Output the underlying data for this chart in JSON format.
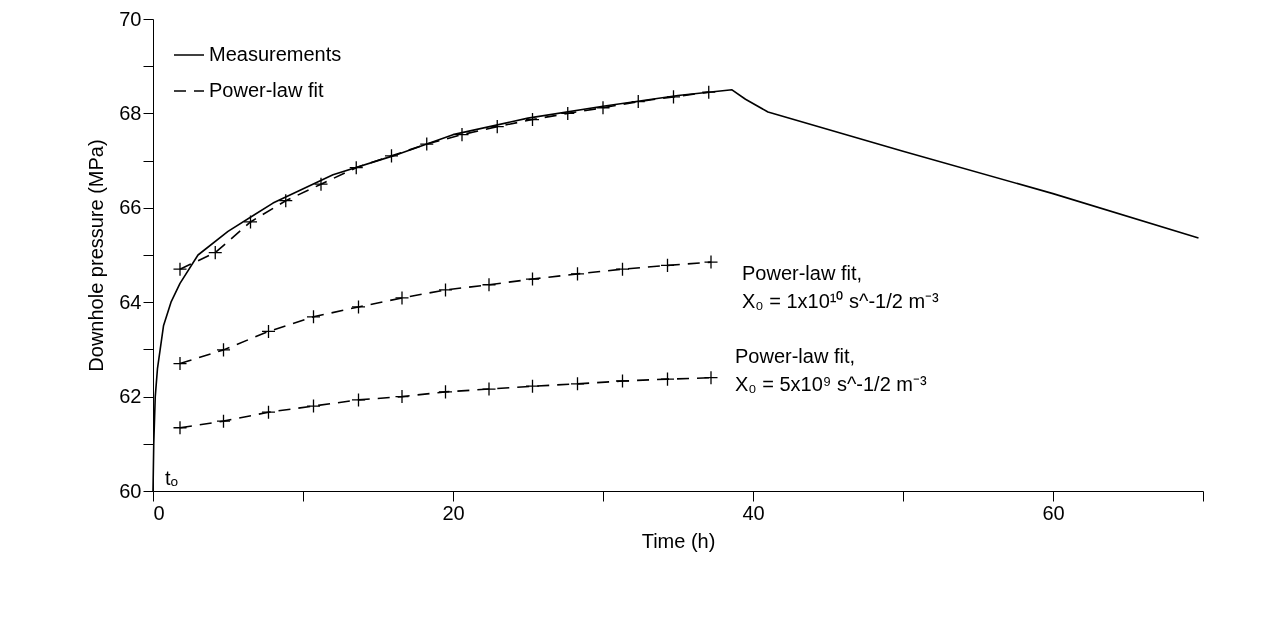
{
  "chart_data": {
    "type": "line",
    "xlabel": "Time (h)",
    "ylabel": "Downhole pressure (MPa)",
    "xlim": [
      0,
      70
    ],
    "ylim": [
      60,
      70
    ],
    "xticks": [
      0,
      {
        "value": 10,
        "label": null
      },
      20,
      {
        "value": 30,
        "label": null
      },
      40,
      {
        "value": 50,
        "label": null
      },
      60,
      {
        "value": 70,
        "label": null
      }
    ],
    "yticks": [
      60,
      {
        "value": 61,
        "label": null
      },
      62,
      {
        "value": 63,
        "label": null
      },
      64,
      {
        "value": 65,
        "label": null
      },
      66,
      {
        "value": 67,
        "label": null
      },
      68,
      {
        "value": 69,
        "label": null
      },
      70
    ],
    "grid": false,
    "legend": "top left",
    "series": [
      {
        "name": "Measurements",
        "color": "#000000",
        "line_style": "solid",
        "marker": "none",
        "x": [
          0,
          0.05,
          0.15,
          0.3,
          0.7,
          1.2,
          1.8,
          3,
          5,
          8,
          12,
          16,
          20,
          25,
          30,
          35,
          38.6,
          39.5,
          41,
          50,
          60,
          69.7
        ],
        "values": [
          60,
          61,
          62,
          62.6,
          63.5,
          64.0,
          64.4,
          65.0,
          65.5,
          66.1,
          66.7,
          67.1,
          67.55,
          67.9,
          68.15,
          68.38,
          68.5,
          68.3,
          68.03,
          67.2,
          66.3,
          65.36
        ]
      },
      {
        "name": "Power-law fit",
        "color": "#000000",
        "line_style": "dashed",
        "marker": "cross",
        "x": [
          1.8,
          4.15,
          6.5,
          8.85,
          11.2,
          13.55,
          15.9,
          18.25,
          20.6,
          22.95,
          25.3,
          27.65,
          30,
          32.35,
          34.7,
          37.05
        ],
        "values": [
          64.7,
          65.05,
          65.7,
          66.15,
          66.5,
          66.85,
          67.1,
          67.35,
          67.55,
          67.72,
          67.87,
          68.0,
          68.12,
          68.25,
          68.35,
          68.45
        ]
      },
      {
        "color": "#000000",
        "line_style": "dashed",
        "marker": "cross",
        "x": [
          1.8,
          4.7,
          7.7,
          10.7,
          13.7,
          16.6,
          19.5,
          22.4,
          25.3,
          28.3,
          31.3,
          34.3,
          37.2
        ],
        "values": [
          62.7,
          62.99,
          63.38,
          63.69,
          63.9,
          64.09,
          64.26,
          64.37,
          64.49,
          64.6,
          64.7,
          64.78,
          64.85
        ]
      },
      {
        "color": "#000000",
        "line_style": "dashed",
        "marker": "cross",
        "x": [
          1.8,
          4.7,
          7.7,
          10.7,
          13.7,
          16.6,
          19.5,
          22.4,
          25.3,
          28.3,
          31.3,
          34.3,
          37.2
        ],
        "values": [
          61.34,
          61.48,
          61.67,
          61.8,
          61.93,
          62.0,
          62.1,
          62.16,
          62.22,
          62.27,
          62.33,
          62.37,
          62.4
        ]
      }
    ],
    "annotations": [
      "Power-law fit,\nX₀ = 1x10¹⁰ s^-1/2 m⁻³",
      "Power-law fit,\nX₀ = 5x10⁹ s^-1/2 m⁻³",
      {
        "text": "tₒ",
        "x": 0,
        "y": 60
      }
    ]
  }
}
